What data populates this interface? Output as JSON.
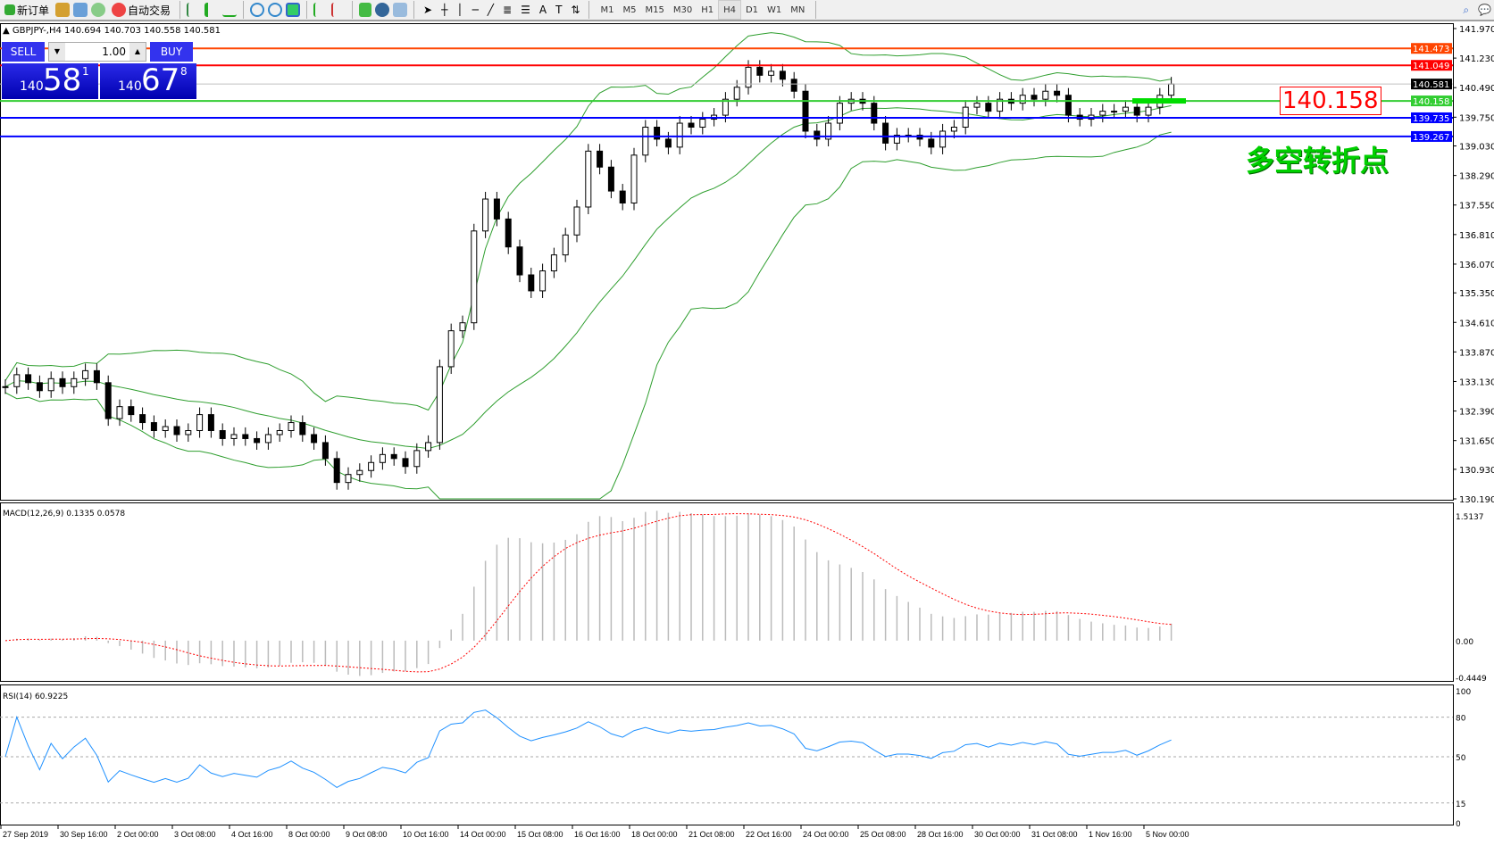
{
  "toolbar": {
    "new_order": "新订单",
    "auto_trading": "自动交易",
    "timeframes": [
      "M1",
      "M5",
      "M15",
      "M30",
      "H1",
      "H4",
      "D1",
      "W1",
      "MN"
    ],
    "active_timeframe": "H4",
    "icons": [
      "new-order-icon",
      "history-icon",
      "navigator-icon",
      "signals-icon",
      "auto-trading-icon",
      "bar-chart-icon",
      "candlestick-icon",
      "line-chart-icon",
      "zoom-in-icon",
      "zoom-out-icon",
      "tile-icon",
      "autoscroll-icon",
      "chart-shift-icon",
      "indicators-icon",
      "periods-icon",
      "templates-icon",
      "cursor-icon",
      "crosshair-icon",
      "vertical-line-icon",
      "horizontal-line-icon",
      "trendline-icon",
      "fibonacci-icon",
      "channel-icon",
      "text-icon",
      "text-label-icon",
      "arrows-icon",
      "search-icon",
      "chat-icon"
    ]
  },
  "chart": {
    "symbol_line": "GBPJPY-,H4  140.694 140.703 140.558 140.581",
    "trade": {
      "sell": "SELL",
      "buy": "BUY",
      "lots": "1.00",
      "sell_big": "140",
      "sell_main": "58",
      "sell_sup": "1",
      "buy_big": "140",
      "buy_main": "67",
      "buy_sup": "8"
    },
    "annotation": "140.158",
    "annotation_cn": "多空转折点",
    "price_ticks": [
      "141.970",
      "141.230",
      "140.490",
      "139.750",
      "139.030",
      "138.290",
      "137.550",
      "136.810",
      "136.070",
      "135.350",
      "134.610",
      "133.870",
      "133.130",
      "132.390",
      "131.650",
      "130.930",
      "130.190"
    ],
    "price_range": [
      130.19,
      141.97
    ],
    "levels": [
      {
        "price": "141.473",
        "color": "#ff4500"
      },
      {
        "price": "141.049",
        "color": "#ff0000"
      },
      {
        "price": "140.581",
        "color": "#c0c0c0",
        "label_bg": "#000000"
      },
      {
        "price": "140.158",
        "color": "#32cd32"
      },
      {
        "price": "139.735",
        "color": "#0000ff"
      },
      {
        "price": "139.267",
        "color": "#0000ff"
      }
    ],
    "time_labels": [
      "27 Sep 2019",
      "30 Sep 16:00",
      "2 Oct 00:00",
      "3 Oct 08:00",
      "4 Oct 16:00",
      "8 Oct 00:00",
      "9 Oct 08:00",
      "10 Oct 16:00",
      "14 Oct 00:00",
      "15 Oct 08:00",
      "16 Oct 16:00",
      "18 Oct 00:00",
      "21 Oct 08:00",
      "22 Oct 16:00",
      "24 Oct 00:00",
      "25 Oct 08:00",
      "28 Oct 16:00",
      "30 Oct 00:00",
      "31 Oct 08:00",
      "1 Nov 16:00",
      "5 Nov 00:00"
    ]
  },
  "macd": {
    "label": "MACD(12,26,9) 0.1335 0.0578",
    "ticks": [
      "1.5137",
      "0.00",
      "-0.4449"
    ],
    "range": [
      -0.4449,
      1.5137
    ]
  },
  "rsi": {
    "label": "RSI(14) 60.9225",
    "ticks": [
      "100",
      "80",
      "50",
      "15",
      "0"
    ]
  },
  "chart_data": {
    "type": "candlestick",
    "closes": [
      133.0,
      133.3,
      133.1,
      132.9,
      133.2,
      133.0,
      133.2,
      133.4,
      133.1,
      132.2,
      132.5,
      132.3,
      132.1,
      131.9,
      132.0,
      131.8,
      131.9,
      132.3,
      131.9,
      131.7,
      131.8,
      131.7,
      131.6,
      131.8,
      131.9,
      132.1,
      131.8,
      131.6,
      131.2,
      130.6,
      130.8,
      130.9,
      131.1,
      131.3,
      131.2,
      131.0,
      131.4,
      131.6,
      133.5,
      134.4,
      134.6,
      136.9,
      137.7,
      137.2,
      136.5,
      135.8,
      135.4,
      135.9,
      136.3,
      136.8,
      137.5,
      138.9,
      138.5,
      137.9,
      137.6,
      138.8,
      139.5,
      139.2,
      139.0,
      139.6,
      139.5,
      139.7,
      139.8,
      140.2,
      140.5,
      141.0,
      140.8,
      140.9,
      140.7,
      140.4,
      139.4,
      139.2,
      139.6,
      140.1,
      140.2,
      140.1,
      139.6,
      139.1,
      139.3,
      139.3,
      139.2,
      139.0,
      139.4,
      139.5,
      140.0,
      140.1,
      139.9,
      140.2,
      140.1,
      140.3,
      140.2,
      140.4,
      140.3,
      139.8,
      139.7,
      139.8,
      139.9,
      139.9,
      140.0,
      139.8,
      140.0,
      140.3,
      140.58
    ]
  }
}
